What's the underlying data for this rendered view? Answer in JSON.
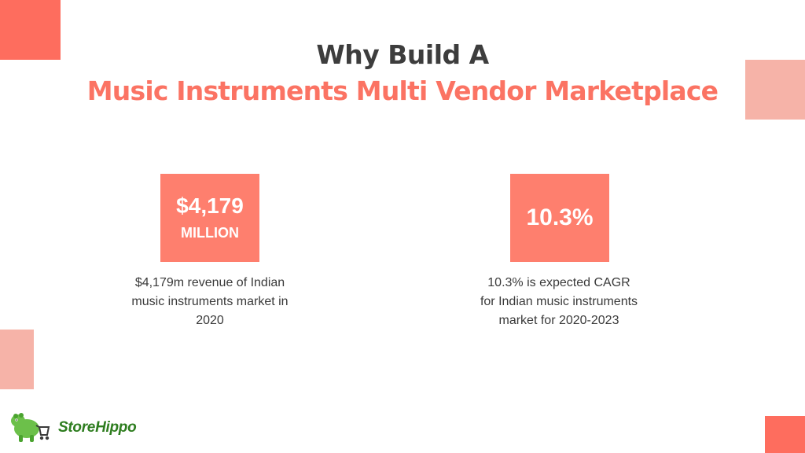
{
  "title": {
    "line1": "Why Build A",
    "line2": "Music Instruments Multi Vendor Marketplace"
  },
  "stats": [
    {
      "value": "$4,179",
      "unit": "MILLION",
      "description": [
        "$4,179m revenue of Indian",
        "music instruments market in",
        "2020"
      ]
    },
    {
      "value": "10.3%",
      "description": [
        "10.3% is expected CAGR",
        "for Indian music instruments",
        "market for 2020-2023"
      ]
    }
  ],
  "logo": {
    "part1": "Store",
    "part2": "Hippo",
    "icon": "hippo-mascot-icon"
  },
  "colors": {
    "accent": "#fe7f6e",
    "title_dark": "#3d3d3d",
    "title_accent": "#fb7363",
    "decor_dark": "#fe6d5e",
    "decor_light": "#f6b3a8",
    "logo_green": "#2e7d1f"
  }
}
